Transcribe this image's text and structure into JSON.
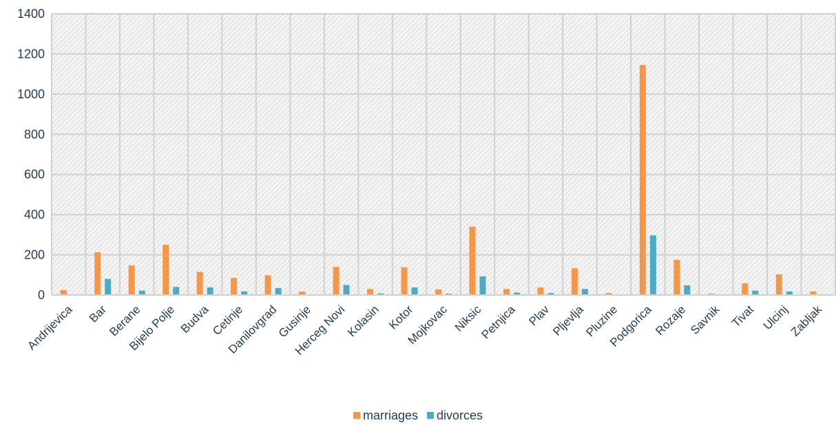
{
  "chart_data": {
    "type": "bar",
    "title": "",
    "xlabel": "",
    "ylabel": "",
    "ylim": [
      0,
      1400
    ],
    "yticks": [
      0,
      200,
      400,
      600,
      800,
      1000,
      1200,
      1400
    ],
    "grid": true,
    "legend_position": "bottom",
    "categories": [
      "Andrijevica",
      "Bar",
      "Berane",
      "Bijelo Polje",
      "Budva",
      "Cetinje",
      "Danilovgrad",
      "Gusinje",
      "Herceg Novi",
      "Kolasin",
      "Kotor",
      "Mojkovac",
      "Niksic",
      "Petnjica",
      "Plav",
      "Pljevlja",
      "Pluzine",
      "Podgorica",
      "Rozaje",
      "Savnik",
      "Tivat",
      "Ulcinj",
      "Zabljak"
    ],
    "series": [
      {
        "name": "marriages",
        "color": "#f79646",
        "values": [
          25,
          213,
          147,
          250,
          115,
          85,
          98,
          17,
          140,
          30,
          138,
          28,
          340,
          30,
          38,
          133,
          10,
          1145,
          175,
          7,
          58,
          103,
          18
        ]
      },
      {
        "name": "divorces",
        "color": "#4bacc6",
        "values": [
          2,
          80,
          22,
          40,
          38,
          18,
          35,
          2,
          50,
          8,
          38,
          7,
          93,
          12,
          10,
          30,
          2,
          297,
          48,
          2,
          22,
          18,
          3
        ]
      }
    ]
  }
}
